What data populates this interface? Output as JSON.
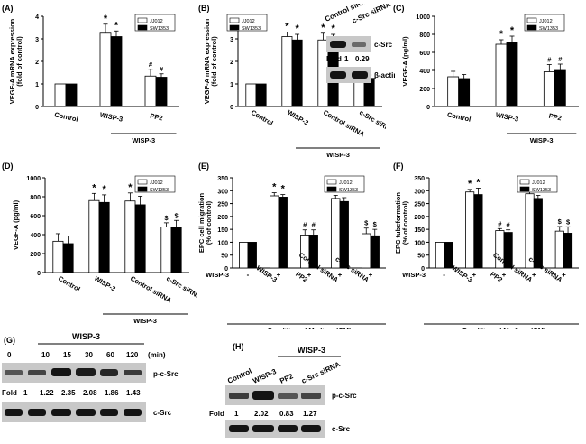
{
  "chart_data": [
    {
      "id": "A",
      "type": "bar",
      "panel_label": "(A)",
      "ylabel": "VEGF-A mRNA expression (fold of control)",
      "ylim": [
        0,
        4
      ],
      "yticks": [
        0,
        1,
        2,
        3,
        4
      ],
      "categories": [
        "Control",
        "WISP-3",
        "PP2"
      ],
      "series": [
        {
          "name": "JJ012",
          "values": [
            1.0,
            3.25,
            1.35
          ],
          "errors": [
            0.0,
            0.4,
            0.3
          ]
        },
        {
          "name": "SW1353",
          "values": [
            1.0,
            3.1,
            1.3
          ],
          "errors": [
            0.0,
            0.25,
            0.15
          ]
        }
      ],
      "marks": [
        [
          "",
          ""
        ],
        [
          "*",
          "*"
        ],
        [
          "#",
          "#"
        ]
      ],
      "groups": [
        {
          "label": "WISP-3",
          "from": 2,
          "to": 2
        }
      ]
    },
    {
      "id": "B",
      "type": "bar",
      "panel_label": "(B)",
      "ylabel": "VEGF-A mRNA expression (fold of control)",
      "ylim": [
        0,
        4
      ],
      "yticks": [
        0,
        1,
        2,
        3,
        4
      ],
      "categories": [
        "Control",
        "WISP-3",
        "Control siRNA",
        "c-Src siRNA"
      ],
      "series": [
        {
          "name": "JJ012",
          "values": [
            1.0,
            3.1,
            2.95,
            1.15
          ],
          "errors": [
            0.0,
            0.2,
            0.3,
            0.2
          ]
        },
        {
          "name": "SW1353",
          "values": [
            1.0,
            2.95,
            2.95,
            1.25
          ],
          "errors": [
            0.0,
            0.25,
            0.25,
            0.15
          ]
        }
      ],
      "marks": [
        [
          "",
          ""
        ],
        [
          "*",
          "*"
        ],
        [
          "*",
          "*"
        ],
        [
          "$",
          "$"
        ]
      ],
      "groups": [
        {
          "label": "WISP-3",
          "from": 2,
          "to": 3
        }
      ]
    },
    {
      "id": "C",
      "type": "bar",
      "panel_label": "(C)",
      "ylabel": "VEGF-A (pg/ml)",
      "ylim": [
        0,
        1000
      ],
      "yticks": [
        0,
        200,
        400,
        600,
        800,
        1000
      ],
      "categories": [
        "Control",
        "WISP-3",
        "PP2"
      ],
      "series": [
        {
          "name": "JJ012",
          "values": [
            330,
            690,
            385
          ],
          "errors": [
            60,
            50,
            80
          ]
        },
        {
          "name": "SW1353",
          "values": [
            310,
            710,
            400
          ],
          "errors": [
            45,
            70,
            70
          ]
        }
      ],
      "marks": [
        [
          "",
          ""
        ],
        [
          "*",
          "*"
        ],
        [
          "#",
          "#"
        ]
      ],
      "groups": [
        {
          "label": "WISP-3",
          "from": 2,
          "to": 2
        }
      ]
    },
    {
      "id": "D",
      "type": "bar",
      "panel_label": "(D)",
      "ylabel": "VEGF-A (pg/ml)",
      "ylim": [
        0,
        1000
      ],
      "yticks": [
        0,
        200,
        400,
        600,
        800,
        1000
      ],
      "categories": [
        "Control",
        "WISP-3",
        "Control siRNA",
        "c-Src siRNA"
      ],
      "series": [
        {
          "name": "JJ012",
          "values": [
            330,
            760,
            755,
            480
          ],
          "errors": [
            80,
            75,
            85,
            45
          ]
        },
        {
          "name": "SW1353",
          "values": [
            305,
            740,
            715,
            480
          ],
          "errors": [
            80,
            80,
            90,
            70
          ]
        }
      ],
      "marks": [
        [
          "",
          ""
        ],
        [
          "*",
          "*"
        ],
        [
          "*",
          "*"
        ],
        [
          "$",
          "$"
        ]
      ],
      "groups": [
        {
          "label": "WISP-3",
          "from": 2,
          "to": 3
        }
      ]
    },
    {
      "id": "E",
      "type": "bar",
      "panel_label": "(E)",
      "ylabel": "EPC cell migration (% of control)",
      "ylim": [
        0,
        350
      ],
      "yticks": [
        0,
        50,
        100,
        150,
        200,
        250,
        300,
        350
      ],
      "categories": [
        "-",
        "WISP-3",
        "PP2",
        "Control siRNA",
        "c-Src siRNA"
      ],
      "row_label": "WISP-3",
      "row_values": [
        "-",
        "+",
        "+",
        "+",
        "+"
      ],
      "series": [
        {
          "name": "JJ012",
          "values": [
            100,
            280,
            128,
            270,
            133
          ],
          "errors": [
            0,
            12,
            20,
            12,
            22
          ]
        },
        {
          "name": "SW1353",
          "values": [
            100,
            275,
            128,
            258,
            125
          ],
          "errors": [
            0,
            10,
            20,
            15,
            25
          ]
        }
      ],
      "marks": [
        [
          "",
          ""
        ],
        [
          "*",
          "*"
        ],
        [
          "#",
          "#"
        ],
        [
          "*",
          "*"
        ],
        [
          "$",
          "$"
        ]
      ],
      "footer": "Conditioned Medium (CM)"
    },
    {
      "id": "F",
      "type": "bar",
      "panel_label": "(F)",
      "ylabel": "EPC tubeformation (% of control)",
      "ylim": [
        0,
        350
      ],
      "yticks": [
        0,
        50,
        100,
        150,
        200,
        250,
        300,
        350
      ],
      "categories": [
        "-",
        "WISP-3",
        "PP2",
        "Control siRNA",
        "c-Src siRNA"
      ],
      "row_label": "WISP-3",
      "row_values": [
        "-",
        "+",
        "+",
        "+",
        "+"
      ],
      "series": [
        {
          "name": "JJ012",
          "values": [
            100,
            295,
            145,
            288,
            143
          ],
          "errors": [
            0,
            10,
            8,
            10,
            18
          ]
        },
        {
          "name": "SW1353",
          "values": [
            100,
            285,
            138,
            270,
            135
          ],
          "errors": [
            0,
            25,
            10,
            12,
            25
          ]
        }
      ],
      "marks": [
        [
          "",
          ""
        ],
        [
          "*",
          "*"
        ],
        [
          "#",
          "#"
        ],
        [
          "*",
          "*"
        ],
        [
          "$",
          "$"
        ]
      ],
      "footer": "Conditioned Medium (CM)"
    }
  ],
  "blots": {
    "B": {
      "headers": [
        "Control siRNA",
        "c-Src siRNA"
      ],
      "fold_label": "Fold",
      "folds": [
        "1",
        "0.29"
      ],
      "bands": [
        "c-Src",
        "β-actin"
      ]
    },
    "G": {
      "panel_label": "(G)",
      "group_label": "WISP-3",
      "times": [
        "0",
        "10",
        "15",
        "30",
        "60",
        "120"
      ],
      "unit": "(min)",
      "fold_label": "Fold",
      "folds": [
        "1",
        "1.22",
        "2.35",
        "2.08",
        "1.86",
        "1.43"
      ],
      "bands": [
        "p-c-Src",
        "c-Src"
      ]
    },
    "H": {
      "panel_label": "(H)",
      "group_label": "WISP-3",
      "headers": [
        "Control",
        "WISP-3",
        "PP2",
        "c-Src siRNA"
      ],
      "fold_label": "Fold",
      "folds": [
        "1",
        "2.02",
        "0.83",
        "1.27"
      ],
      "bands": [
        "p-c-Src",
        "c-Src"
      ]
    }
  },
  "colors": {
    "series1": "#ffffff",
    "series2": "#000000",
    "stroke": "#000000",
    "blot_bg": "#c8c8c8",
    "band": "#141414"
  }
}
